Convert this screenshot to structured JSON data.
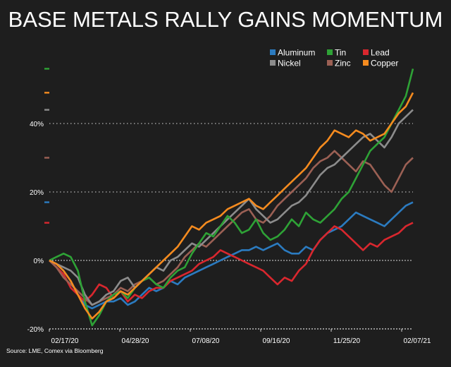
{
  "chart_data": {
    "type": "line",
    "title": "BASE METALS RALLY GAINS MOMENTUM",
    "source": "Source: LME, Comex via Bloomberg",
    "xlabel": "",
    "ylabel": "",
    "x_tick_labels": [
      "02/17/20",
      "04/28/20",
      "07/08/20",
      "09/16/20",
      "11/25/20",
      "02/07/21"
    ],
    "y_tick_labels": [
      "-20%",
      "0%",
      "20%",
      "40%"
    ],
    "y_ticks": [
      -20,
      0,
      20,
      40
    ],
    "ylim": [
      -20,
      58
    ],
    "grid": "dotted horizontal",
    "legend_position": "top-right",
    "x_points": 52,
    "x_note": "approximately weekly, 02/17/20 to 02/07/21",
    "series": [
      {
        "name": "Aluminum",
        "color": "#2b7bc0",
        "values": [
          0,
          -1,
          -3,
          -6,
          -10,
          -13,
          -14,
          -13,
          -12,
          -12,
          -11,
          -13,
          -12,
          -10,
          -8,
          -9,
          -8,
          -6,
          -7,
          -5,
          -4,
          -3,
          -2,
          -1,
          0,
          1,
          2,
          3,
          3,
          4,
          3,
          4,
          5,
          3,
          2,
          2,
          4,
          3,
          6,
          8,
          9,
          10,
          12,
          14,
          13,
          12,
          11,
          10,
          12,
          14,
          16,
          17
        ]
      },
      {
        "name": "Tin",
        "color": "#2ea236",
        "values": [
          0,
          1,
          2,
          1,
          -3,
          -12,
          -19,
          -16,
          -12,
          -10,
          -9,
          -11,
          -8,
          -6,
          -5,
          -7,
          -8,
          -5,
          -3,
          -2,
          2,
          5,
          8,
          7,
          10,
          13,
          11,
          8,
          9,
          12,
          8,
          6,
          7,
          9,
          12,
          10,
          14,
          12,
          11,
          13,
          15,
          18,
          20,
          24,
          28,
          32,
          34,
          36,
          40,
          44,
          48,
          56
        ]
      },
      {
        "name": "Lead",
        "color": "#d9272e",
        "values": [
          0,
          -2,
          -4,
          -8,
          -10,
          -12,
          -10,
          -7,
          -8,
          -11,
          -9,
          -12,
          -10,
          -11,
          -9,
          -8,
          -8,
          -6,
          -5,
          -4,
          -3,
          -1,
          0,
          1,
          3,
          2,
          1,
          0,
          -1,
          -2,
          -3,
          -5,
          -7,
          -5,
          -6,
          -3,
          -1,
          3,
          6,
          8,
          10,
          9,
          7,
          5,
          3,
          5,
          4,
          6,
          7,
          8,
          10,
          11
        ]
      },
      {
        "name": "Nickel",
        "color": "#8c8c8c",
        "values": [
          0,
          -1,
          -2,
          -3,
          -5,
          -10,
          -13,
          -12,
          -10,
          -9,
          -6,
          -5,
          -8,
          -6,
          -4,
          -2,
          -3,
          0,
          1,
          3,
          5,
          4,
          6,
          8,
          10,
          12,
          14,
          16,
          18,
          15,
          13,
          11,
          12,
          14,
          16,
          17,
          19,
          22,
          25,
          27,
          28,
          30,
          32,
          34,
          36,
          37,
          35,
          33,
          36,
          40,
          42,
          44
        ]
      },
      {
        "name": "Zinc",
        "color": "#9b6054",
        "values": [
          0,
          -2,
          -5,
          -7,
          -9,
          -11,
          -13,
          -12,
          -11,
          -10,
          -8,
          -9,
          -7,
          -6,
          -5,
          -7,
          -6,
          -4,
          -2,
          1,
          3,
          5,
          4,
          6,
          8,
          10,
          12,
          14,
          15,
          12,
          11,
          13,
          16,
          18,
          20,
          22,
          24,
          27,
          29,
          30,
          32,
          30,
          28,
          26,
          29,
          28,
          25,
          22,
          20,
          24,
          28,
          30
        ]
      },
      {
        "name": "Copper",
        "color": "#f58b1f",
        "values": [
          0,
          -1,
          -3,
          -6,
          -10,
          -14,
          -17,
          -15,
          -12,
          -11,
          -9,
          -10,
          -8,
          -6,
          -4,
          -2,
          0,
          2,
          4,
          7,
          10,
          9,
          11,
          12,
          13,
          15,
          16,
          17,
          18,
          16,
          15,
          17,
          19,
          21,
          23,
          25,
          27,
          30,
          33,
          35,
          38,
          37,
          36,
          38,
          37,
          35,
          36,
          37,
          40,
          43,
          45,
          49
        ]
      }
    ]
  }
}
